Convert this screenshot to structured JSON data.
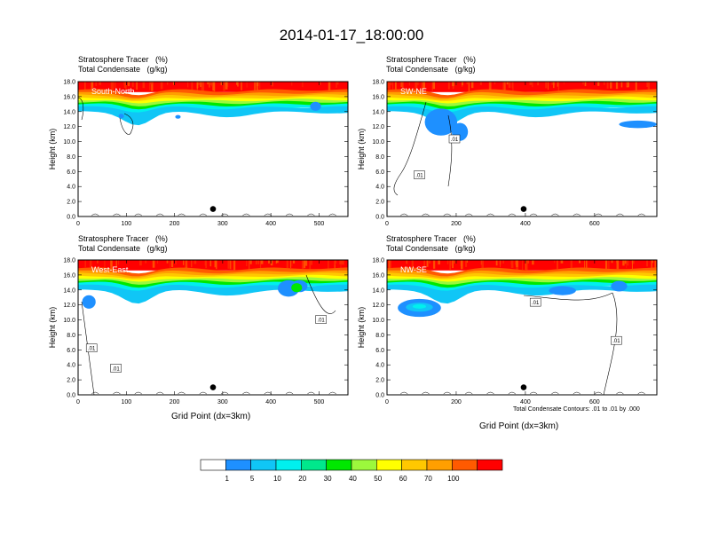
{
  "main_title": "2014-01-17_18:00:00",
  "panel_title_1": "Stratosphere Tracer   (%)",
  "panel_title_2": "Total Condensate   (g/kg)",
  "ylabel": "Height (km)",
  "xlabel": "Grid Point (dx=3km)",
  "contour_note": "Total Condensate Contours: .01 to .01 by .000",
  "contour_label": ".01",
  "colorbar": {
    "levels": [
      "1",
      "5",
      "10",
      "20",
      "30",
      "40",
      "50",
      "60",
      "70",
      "100"
    ],
    "colors": [
      "#ffffff",
      "#1e90ff",
      "#10c6f6",
      "#00f0ee",
      "#00e88c",
      "#00e800",
      "#9cf83c",
      "#ffff00",
      "#ffc800",
      "#ff9f00",
      "#ff5a00",
      "#ff0000"
    ]
  },
  "chart_data": [
    {
      "type": "heatmap",
      "panel_label": "South-North",
      "xlim": [
        0,
        560
      ],
      "ylim": [
        0,
        18
      ],
      "xticks": [
        "0",
        "100",
        "200",
        "300",
        "400",
        "500"
      ],
      "yticks": [
        "0.0",
        "2.0",
        "4.0",
        "6.0",
        "8.0",
        "10.0",
        "12.0",
        "14.0",
        "16.0",
        "18.0"
      ],
      "marker_x": 280,
      "marker_y": 1.0
    },
    {
      "type": "heatmap",
      "panel_label": "SW-NE",
      "xlim": [
        0,
        780
      ],
      "ylim": [
        0,
        18
      ],
      "xticks": [
        "0",
        "200",
        "400",
        "600"
      ],
      "yticks": [
        "0.0",
        "2.0",
        "4.0",
        "6.0",
        "8.0",
        "10.0",
        "12.0",
        "14.0",
        "16.0",
        "18.0"
      ],
      "marker_x": 395,
      "marker_y": 1.0
    },
    {
      "type": "heatmap",
      "panel_label": "West-East",
      "xlim": [
        0,
        560
      ],
      "ylim": [
        0,
        18
      ],
      "xticks": [
        "0",
        "100",
        "200",
        "300",
        "400",
        "500"
      ],
      "yticks": [
        "0.0",
        "2.0",
        "4.0",
        "6.0",
        "8.0",
        "10.0",
        "12.0",
        "14.0",
        "16.0",
        "18.0"
      ],
      "marker_x": 280,
      "marker_y": 1.0
    },
    {
      "type": "heatmap",
      "panel_label": "NW-SE",
      "xlim": [
        0,
        780
      ],
      "ylim": [
        0,
        18
      ],
      "xticks": [
        "0",
        "200",
        "400",
        "600"
      ],
      "yticks": [
        "0.0",
        "2.0",
        "4.0",
        "6.0",
        "8.0",
        "10.0",
        "12.0",
        "14.0",
        "16.0",
        "18.0"
      ],
      "marker_x": 395,
      "marker_y": 1.0
    }
  ]
}
